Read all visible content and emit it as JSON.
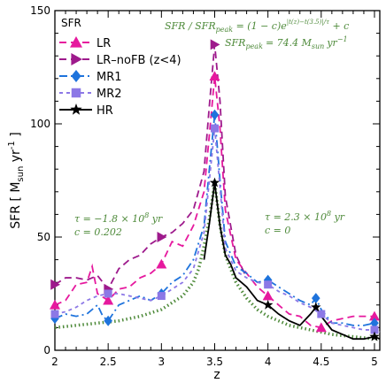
{
  "chart_data": {
    "type": "line",
    "xlabel": "z",
    "ylabel": "SFR [ M",
    "ylabel_sub": "sun",
    "ylabel_tail": " yr",
    "ylabel_sup": "-1",
    "ylabel_close": " ]",
    "xlim": [
      2.0,
      5.05
    ],
    "ylim": [
      0,
      150
    ],
    "xticks": [
      2.0,
      2.5,
      3.0,
      3.5,
      4.0,
      4.5,
      5.0
    ],
    "xtick_labels": [
      "2",
      "2.5",
      "3",
      "3.5",
      "4",
      "4.5",
      "5"
    ],
    "yticks": [
      0,
      50,
      100,
      150
    ],
    "ytick_labels": [
      "0",
      "50",
      "100",
      "150"
    ],
    "legend_title": "SFR",
    "legend_position": "top-left",
    "series": [
      {
        "name": "LR",
        "color": "#e6199e",
        "dash": "8,5",
        "marker": "triangle",
        "x": [
          2.0,
          2.1,
          2.2,
          2.3,
          2.35,
          2.4,
          2.5,
          2.6,
          2.7,
          2.8,
          2.9,
          3.0,
          3.1,
          3.2,
          3.3,
          3.4,
          3.45,
          3.5,
          3.55,
          3.6,
          3.7,
          3.8,
          3.9,
          4.0,
          4.1,
          4.2,
          4.3,
          4.4,
          4.5,
          4.6,
          4.7,
          4.8,
          4.9,
          5.0,
          5.05
        ],
        "y": [
          20,
          22,
          29,
          30,
          37,
          25,
          22,
          27,
          28,
          32,
          34,
          38,
          48,
          46,
          55,
          70,
          95,
          121,
          98,
          62,
          40,
          34,
          28,
          24,
          20,
          16,
          15,
          11,
          10,
          13,
          14,
          15,
          15,
          15,
          13
        ],
        "markers_x": [
          2.0,
          2.5,
          3.0,
          3.5,
          4.0,
          4.5,
          5.0
        ],
        "markers_y": [
          20,
          22,
          38,
          121,
          24,
          10,
          15
        ]
      },
      {
        "name": "LR–noFB (z<4)",
        "color": "#9e1a8c",
        "dash": "8,5",
        "marker": "right-triangle",
        "x": [
          2.0,
          2.1,
          2.2,
          2.3,
          2.4,
          2.5,
          2.6,
          2.7,
          2.8,
          2.9,
          3.0,
          3.1,
          3.2,
          3.3,
          3.4,
          3.45,
          3.5,
          3.55,
          3.6,
          3.7,
          3.8
        ],
        "y": [
          29,
          32,
          32,
          31,
          33,
          27,
          36,
          40,
          42,
          47,
          50,
          52,
          56,
          62,
          79,
          108,
          135,
          110,
          68,
          42,
          32
        ],
        "markers_x": [
          2.0,
          2.5,
          3.0,
          3.5
        ],
        "markers_y": [
          29,
          27,
          50,
          135
        ]
      },
      {
        "name": "MR1",
        "color": "#1e73dc",
        "dash": "9,4,2,4",
        "marker": "diamond",
        "x": [
          2.0,
          2.1,
          2.2,
          2.3,
          2.4,
          2.45,
          2.5,
          2.6,
          2.7,
          2.8,
          2.9,
          3.0,
          3.1,
          3.2,
          3.3,
          3.4,
          3.45,
          3.5,
          3.55,
          3.6,
          3.7,
          3.8,
          3.9,
          4.0,
          4.1,
          4.2,
          4.3,
          4.4,
          4.45,
          4.5,
          4.6,
          4.7,
          4.8,
          4.9,
          5.0,
          5.05
        ],
        "y": [
          14,
          16,
          15,
          16,
          20,
          15,
          13,
          20,
          22,
          24,
          22,
          25,
          30,
          33,
          40,
          55,
          80,
          104,
          75,
          48,
          37,
          34,
          30,
          31,
          28,
          25,
          22,
          20,
          23,
          18,
          12,
          12,
          11,
          11,
          12,
          12
        ],
        "markers_x": [
          2.0,
          2.5,
          3.0,
          3.5,
          4.0,
          4.45,
          5.0
        ],
        "markers_y": [
          14,
          13,
          25,
          104,
          31,
          23,
          12
        ]
      },
      {
        "name": "MR2",
        "color": "#8c78e6",
        "dash": "4,4",
        "marker": "square",
        "x": [
          2.0,
          2.1,
          2.2,
          2.3,
          2.4,
          2.5,
          2.6,
          2.7,
          2.8,
          2.9,
          3.0,
          3.1,
          3.2,
          3.3,
          3.4,
          3.45,
          3.5,
          3.55,
          3.6,
          3.7,
          3.8,
          3.9,
          4.0,
          4.1,
          4.2,
          4.3,
          4.4,
          4.5,
          4.6,
          4.7,
          4.8,
          4.9,
          5.0,
          5.05
        ],
        "y": [
          16,
          17,
          19,
          22,
          24,
          25,
          25,
          24,
          23,
          22,
          24,
          27,
          30,
          36,
          52,
          75,
          98,
          72,
          45,
          35,
          32,
          30,
          29,
          26,
          24,
          21,
          19,
          16,
          12,
          11,
          10,
          9,
          9,
          8
        ],
        "markers_x": [
          2.0,
          2.5,
          3.0,
          3.5,
          4.0,
          4.5,
          5.0
        ],
        "markers_y": [
          16,
          25,
          24,
          98,
          29,
          16,
          9
        ]
      },
      {
        "name": "HR",
        "color": "#000000",
        "dash": "",
        "marker": "star",
        "x": [
          3.4,
          3.45,
          3.5,
          3.55,
          3.6,
          3.65,
          3.7,
          3.75,
          3.8,
          3.9,
          4.0,
          4.1,
          4.2,
          4.3,
          4.4,
          4.45,
          4.5,
          4.6,
          4.7,
          4.8,
          4.9,
          5.0,
          5.05
        ],
        "y": [
          40,
          56,
          74,
          55,
          42,
          38,
          32,
          30,
          28,
          22,
          20,
          16,
          13,
          11,
          16,
          19,
          15,
          9,
          7,
          5,
          5,
          6,
          5
        ],
        "markers_x": [
          3.5,
          4.0,
          4.45,
          5.0
        ],
        "markers_y": [
          74,
          20,
          19,
          6
        ]
      }
    ],
    "fit": {
      "color": "#4e8a3a",
      "x": [
        2.0,
        2.2,
        2.4,
        2.6,
        2.8,
        3.0,
        3.1,
        3.2,
        3.3,
        3.35,
        3.4,
        3.45,
        3.5,
        3.55,
        3.6,
        3.7,
        3.8,
        3.9,
        4.0,
        4.2,
        4.4,
        4.6,
        4.8,
        5.0,
        5.05
      ],
      "y": [
        10,
        11,
        12,
        13,
        15,
        18,
        21,
        24,
        30,
        36,
        46,
        58,
        74,
        55,
        42,
        30,
        23,
        18,
        15,
        11,
        9,
        7,
        6,
        5,
        5
      ]
    },
    "annotations": {
      "formula_left": "SFR / SFR",
      "formula_sub": "peak",
      "formula_mid": " = (1 − c)e",
      "formula_exp": "|t(z)−t(3.5)|/τ",
      "formula_right": " + c",
      "peak_left": "SFR",
      "peak_sub": "peak",
      "peak_mid": "= 74.4  M",
      "peak_msub": "sun",
      "peak_unit": "yr",
      "peak_sup": "−1",
      "left_tau": "τ = −1.8 × 10",
      "left_tau_exp": "8",
      "left_tau_unit": " yr",
      "left_c": "c = 0.202",
      "right_tau": "τ = 2.3 × 10",
      "right_tau_exp": "8",
      "right_tau_unit": " yr",
      "right_c": "c = 0"
    }
  }
}
